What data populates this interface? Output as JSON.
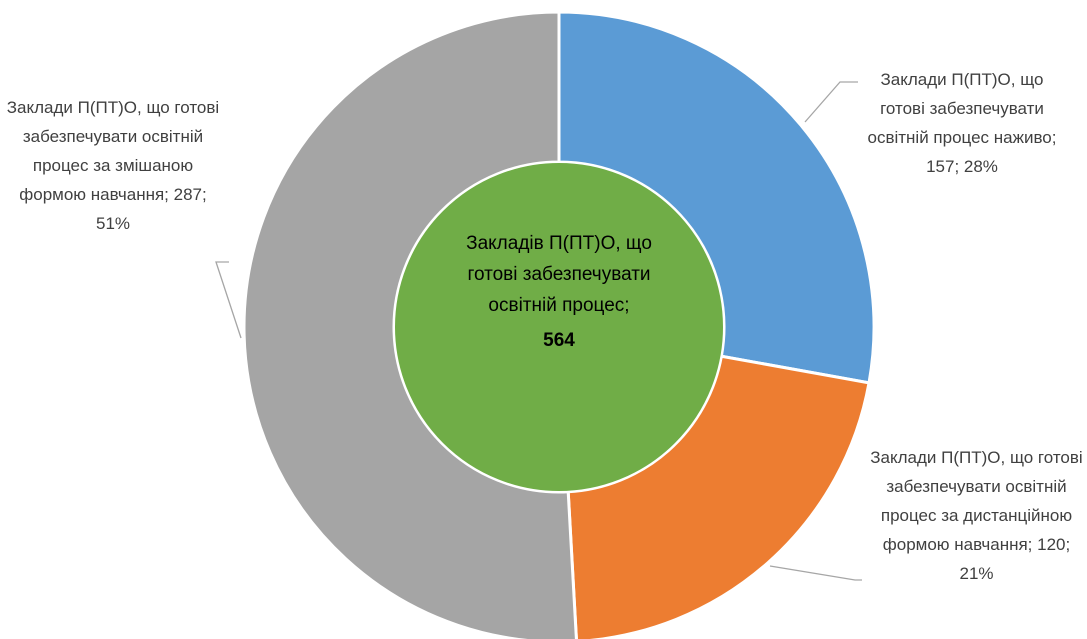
{
  "chart_data": {
    "type": "donut",
    "labels": [
      "Заклади П(ПТ)О, що готові забезпечувати освітній процес наживо; 157; 28%",
      "Заклади П(ПТ)О, що готові забезпечувати освітній процес за дистанційною формою навчання; 120; 21%",
      "Заклади П(ПТ)О, що готові забезпечувати освітній процес за змішаною формою навчання; 287; 51%"
    ],
    "values": [
      157,
      120,
      287
    ],
    "colors": [
      "#5b9bd5",
      "#ed7d31",
      "#a5a5a5"
    ],
    "center_label": "Закладів П(ПТ)О, що  готові забезпечувати освітній процес;",
    "center_value": 564,
    "center_color": "#70ad47"
  }
}
